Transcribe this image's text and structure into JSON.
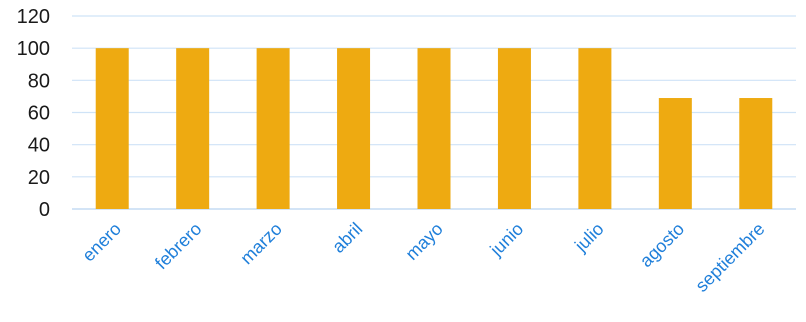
{
  "chart_data": {
    "type": "bar",
    "title": "",
    "xlabel": "",
    "ylabel": "",
    "categories": [
      "enero",
      "febrero",
      "marzo",
      "abril",
      "mayo",
      "junio",
      "julio",
      "agosto",
      "septiembre"
    ],
    "values": [
      100,
      100,
      100,
      100,
      100,
      100,
      100,
      69,
      69
    ],
    "ylim": [
      0,
      120
    ],
    "yticks": [
      "0",
      "20",
      "40",
      "60",
      "80",
      "100",
      "120"
    ],
    "grid": true,
    "legend": "none",
    "colors": {
      "bar": "#EEAA11",
      "grid": "#CFE3F7",
      "x_tick_text": "#1F7FDA",
      "y_tick_text": "#1A1A1A"
    }
  }
}
